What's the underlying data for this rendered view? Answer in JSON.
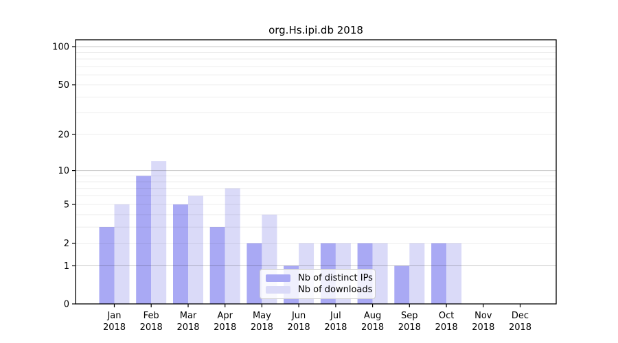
{
  "title": "org.Hs.ipi.db 2018",
  "chart_data": {
    "type": "bar",
    "title": "org.Hs.ipi.db 2018",
    "categories": [
      "Jan",
      "Feb",
      "Mar",
      "Apr",
      "May",
      "Jun",
      "Jul",
      "Aug",
      "Sep",
      "Oct",
      "Nov",
      "Dec"
    ],
    "category_year": "2018",
    "series": [
      {
        "name": "Nb of distinct IPs",
        "color": "#a9a9f4",
        "values": [
          3,
          9,
          5,
          3,
          2,
          1,
          2,
          2,
          1,
          2,
          0,
          0
        ]
      },
      {
        "name": "Nb of downloads",
        "color": "#dadaf8",
        "values": [
          5,
          12,
          6,
          7,
          4,
          2,
          2,
          2,
          2,
          2,
          0,
          0
        ]
      }
    ],
    "y_axis": {
      "scale": "log1p",
      "ylim": [
        0,
        100
      ],
      "tick_labels": [
        0,
        1,
        2,
        5,
        10,
        20,
        50,
        100
      ],
      "minor_gridlines": [
        2,
        3,
        4,
        5,
        6,
        7,
        8,
        9,
        20,
        30,
        40,
        50,
        60,
        70,
        80,
        90
      ],
      "major_gridlines": [
        1,
        10,
        100
      ]
    },
    "legend": {
      "position": "lower center"
    },
    "colors": {
      "spine": "#000000",
      "text": "#000000",
      "grid_minor": "rgba(0,0,0,0.07)",
      "grid_major": "rgba(0,0,0,0.22)"
    }
  }
}
